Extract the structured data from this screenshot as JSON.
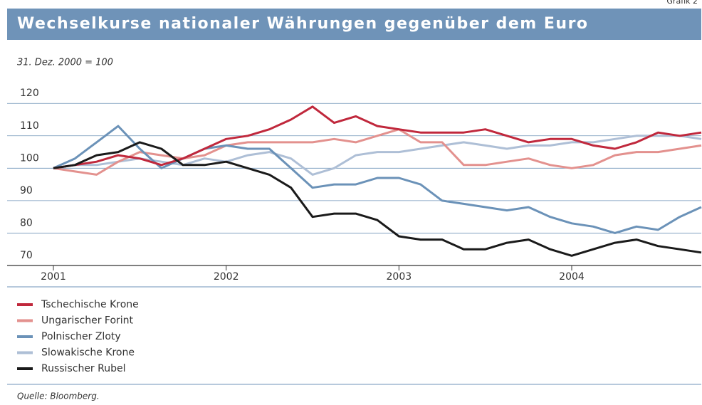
{
  "chart_data": {
    "type": "line",
    "label": "Grafik 2",
    "title": "Wechselkurse nationaler Währungen gegenüber dem Euro",
    "subtitle": "31. Dez. 2000 = 100",
    "source": "Quelle: Bloomberg.",
    "x": [
      2001,
      2001.125,
      2001.25,
      2001.375,
      2001.5,
      2001.625,
      2001.75,
      2001.875,
      2002,
      2002.125,
      2002.25,
      2002.375,
      2002.5,
      2002.625,
      2002.75,
      2002.875,
      2003,
      2003.125,
      2003.25,
      2003.375,
      2003.5,
      2003.625,
      2003.75,
      2003.875,
      2004,
      2004.125,
      2004.25,
      2004.375,
      2004.5,
      2004.625,
      2004.75
    ],
    "xlim": [
      2001,
      2004.75
    ],
    "xticks": [
      2001,
      2002,
      2003,
      2004
    ],
    "ylim": [
      70,
      124
    ],
    "yticks": [
      70,
      80,
      90,
      100,
      110,
      120
    ],
    "grid": true,
    "series": [
      {
        "name": "Tschechische Krone",
        "color": "#c0283c",
        "values": [
          100,
          101,
          102,
          104,
          103,
          101,
          103,
          106,
          109,
          110,
          112,
          115,
          119,
          114,
          116,
          113,
          112,
          111,
          111,
          111,
          112,
          110,
          108,
          109,
          109,
          107,
          106,
          108,
          111,
          110,
          111
        ]
      },
      {
        "name": "Ungarischer Forint",
        "color": "#e3918e",
        "values": [
          100,
          99,
          98,
          102,
          105,
          104,
          103,
          104,
          107,
          108,
          108,
          108,
          108,
          109,
          108,
          110,
          112,
          108,
          108,
          101,
          101,
          102,
          103,
          101,
          100,
          101,
          104,
          105,
          105,
          106,
          107
        ]
      },
      {
        "name": "Polnischer Zloty",
        "color": "#6b92b8",
        "values": [
          100,
          103,
          108,
          113,
          106,
          100,
          103,
          106,
          107,
          106,
          106,
          100,
          94,
          95,
          95,
          97,
          97,
          95,
          90,
          89,
          88,
          87,
          88,
          85,
          83,
          82,
          80,
          82,
          81,
          85,
          88
        ]
      },
      {
        "name": "Slowakische Krone",
        "color": "#aebfd6",
        "values": [
          100,
          101,
          101,
          102,
          103,
          102,
          101,
          103,
          102,
          104,
          105,
          103,
          98,
          100,
          104,
          105,
          105,
          106,
          107,
          108,
          107,
          106,
          107,
          107,
          108,
          108,
          109,
          110,
          110,
          110,
          109
        ]
      },
      {
        "name": "Russischer Rubel",
        "color": "#1a1a1a",
        "values": [
          100,
          101,
          104,
          105,
          108,
          106,
          101,
          101,
          102,
          100,
          98,
          94,
          85,
          86,
          86,
          84,
          79,
          78,
          78,
          75,
          75,
          77,
          78,
          75,
          73,
          75,
          77,
          78,
          76,
          75,
          74
        ]
      }
    ]
  }
}
